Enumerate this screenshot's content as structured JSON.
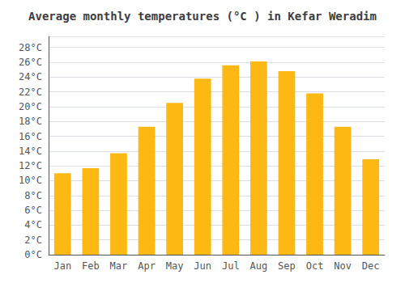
{
  "chart_data": {
    "type": "bar",
    "title": "Average monthly temperatures (°C ) in Kefar Weradim",
    "categories": [
      "Jan",
      "Feb",
      "Mar",
      "Apr",
      "May",
      "Jun",
      "Jul",
      "Aug",
      "Sep",
      "Oct",
      "Nov",
      "Dec"
    ],
    "values": [
      11.0,
      11.7,
      13.7,
      17.3,
      20.5,
      23.8,
      25.6,
      26.1,
      24.8,
      21.8,
      17.3,
      12.9
    ],
    "color": "#FDB813",
    "ylim": [
      0,
      29.5
    ],
    "yticks": [
      {
        "value": 0,
        "label": "0°C"
      },
      {
        "value": 2,
        "label": "2°C"
      },
      {
        "value": 4,
        "label": "4°C"
      },
      {
        "value": 6,
        "label": "6°C"
      },
      {
        "value": 8,
        "label": "8°C"
      },
      {
        "value": 10,
        "label": "10°C"
      },
      {
        "value": 12,
        "label": "12°C"
      },
      {
        "value": 14,
        "label": "14°C"
      },
      {
        "value": 16,
        "label": "16°C"
      },
      {
        "value": 18,
        "label": "18°C"
      },
      {
        "value": 20,
        "label": "20°C"
      },
      {
        "value": 22,
        "label": "22°C"
      },
      {
        "value": 24,
        "label": "24°C"
      },
      {
        "value": 26,
        "label": "26°C"
      },
      {
        "value": 28,
        "label": "28°C"
      }
    ],
    "grid": true
  }
}
